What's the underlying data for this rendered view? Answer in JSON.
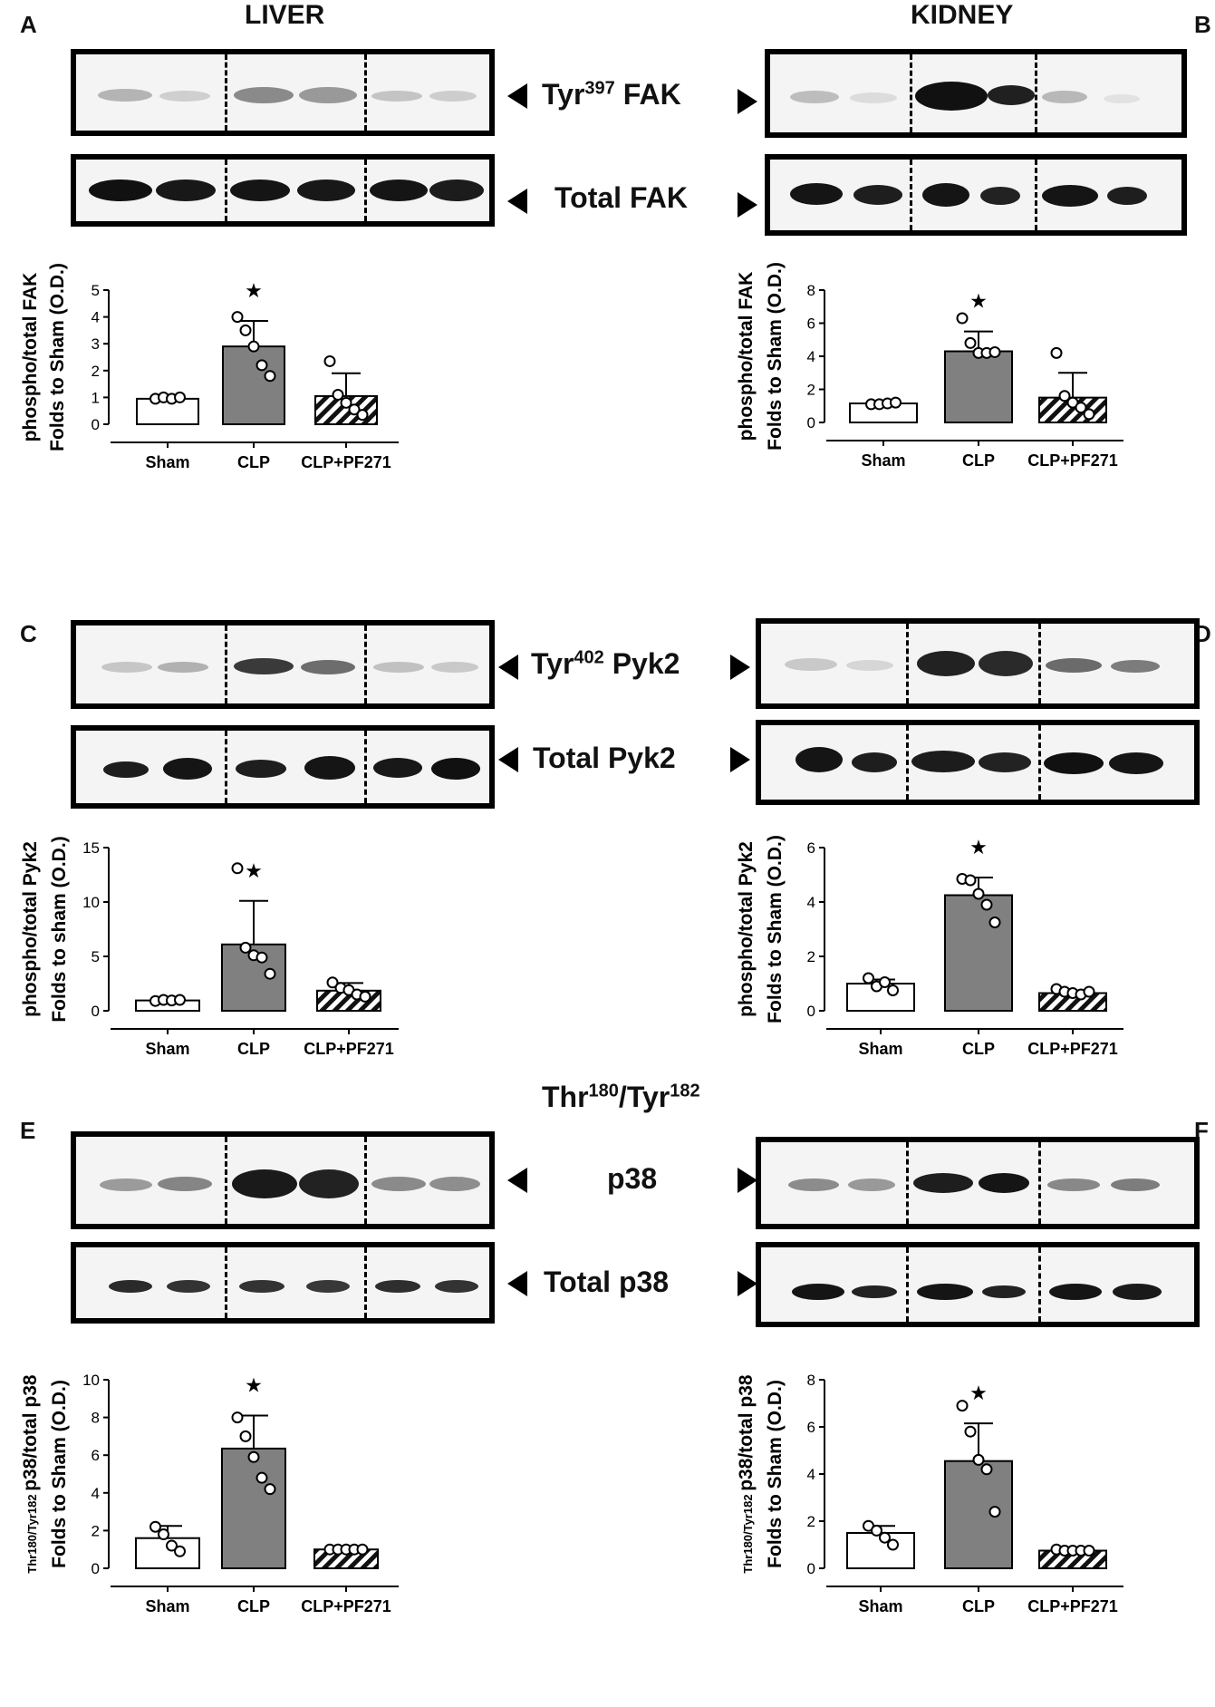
{
  "headers": {
    "liver": "LIVER",
    "kidney": "KIDNEY"
  },
  "panel_letters": [
    "A",
    "B",
    "C",
    "D",
    "E",
    "F"
  ],
  "blot_labels": {
    "fak_phospho_main": "Tyr",
    "fak_phospho_sup": "397",
    "fak_phospho_tail": " FAK",
    "fak_total": "Total FAK",
    "pyk2_phospho_main": "Tyr",
    "pyk2_phospho_sup": "402",
    "pyk2_phospho_tail": " Pyk2",
    "pyk2_total": "Total Pyk2",
    "p38_phospho_a": "Thr",
    "p38_phospho_a_sup": "180",
    "p38_phospho_b": "/Tyr",
    "p38_phospho_b_sup": "182",
    "p38_phospho_line2": "p38",
    "p38_total": "Total p38"
  },
  "colors": {
    "sham": "#ffffff",
    "clp": "#808080",
    "pf": "hatched",
    "star": "#000000"
  },
  "chart_data": [
    {
      "panel": "A",
      "type": "bar",
      "categories": [
        "Sham",
        "CLP",
        "CLP+PF271"
      ],
      "ylabel_line1": "phospho/total FAK",
      "ylabel_line2": "Folds to Sham (O.D.)",
      "ylim": [
        0,
        5
      ],
      "yticks": [
        "0",
        "1",
        "2",
        "3",
        "4",
        "5"
      ],
      "values": [
        0.95,
        2.9,
        1.05
      ],
      "errors": [
        0.05,
        0.95,
        0.85
      ],
      "points": [
        [
          0.95,
          1.0,
          0.95,
          1.0
        ],
        [
          4.0,
          3.5,
          2.9,
          2.2,
          1.8
        ],
        [
          2.35,
          1.1,
          0.8,
          0.55,
          0.35
        ]
      ],
      "significance": [
        "",
        "★",
        ""
      ]
    },
    {
      "panel": "B",
      "type": "bar",
      "categories": [
        "Sham",
        "CLP",
        "CLP+PF271"
      ],
      "ylabel_line1": "phospho/total FAK",
      "ylabel_line2": "Folds to Sham (O.D.)",
      "ylim": [
        0,
        8
      ],
      "yticks": [
        "0",
        "2",
        "4",
        "6",
        "8"
      ],
      "values": [
        1.15,
        4.3,
        1.5
      ],
      "errors": [
        0.1,
        1.2,
        1.5
      ],
      "points": [
        [
          1.1,
          1.1,
          1.15,
          1.2
        ],
        [
          6.3,
          4.8,
          4.2,
          4.2,
          4.25
        ],
        [
          4.2,
          1.6,
          1.2,
          0.9,
          0.5
        ]
      ],
      "significance": [
        "",
        "★",
        ""
      ]
    },
    {
      "panel": "C",
      "type": "bar",
      "categories": [
        "Sham",
        "CLP",
        "CLP+PF271"
      ],
      "ylabel_line1": "phospho/total Pyk2",
      "ylabel_line2": "Folds to sham (O.D.)",
      "ylim": [
        0,
        15
      ],
      "yticks": [
        "0",
        "5",
        "10",
        "15"
      ],
      "values": [
        0.95,
        6.1,
        1.85
      ],
      "errors": [
        0.05,
        4.0,
        0.7
      ],
      "points": [
        [
          0.9,
          1.0,
          0.95,
          1.0
        ],
        [
          13.1,
          5.8,
          5.1,
          4.9,
          3.4
        ],
        [
          2.6,
          2.1,
          1.9,
          1.5,
          1.3
        ]
      ],
      "significance": [
        "",
        "★",
        ""
      ]
    },
    {
      "panel": "D",
      "type": "bar",
      "categories": [
        "Sham",
        "CLP",
        "CLP+PF271"
      ],
      "ylabel_line1": "phospho/total Pyk2",
      "ylabel_line2": "Folds to Sham (O.D.)",
      "ylim": [
        0,
        6
      ],
      "yticks": [
        "0",
        "2",
        "4",
        "6"
      ],
      "values": [
        1.0,
        4.25,
        0.65
      ],
      "errors": [
        0.15,
        0.65,
        0.1
      ],
      "points": [
        [
          1.2,
          0.9,
          1.05,
          0.75
        ],
        [
          4.85,
          4.8,
          4.3,
          3.9,
          3.25
        ],
        [
          0.8,
          0.7,
          0.65,
          0.6,
          0.7
        ]
      ],
      "significance": [
        "",
        "★",
        ""
      ]
    },
    {
      "panel": "E",
      "type": "bar",
      "categories": [
        "Sham",
        "CLP",
        "CLP+PF271"
      ],
      "ylabel_small": "Thr180/Tyr182",
      "ylabel_line1": "p38/total p38",
      "ylabel_line2": "Folds to Sham (O.D.)",
      "ylim": [
        0,
        10
      ],
      "yticks": [
        "0",
        "2",
        "4",
        "6",
        "8",
        "10"
      ],
      "values": [
        1.6,
        6.35,
        1.0
      ],
      "errors": [
        0.65,
        1.75,
        0.05
      ],
      "points": [
        [
          2.2,
          1.8,
          1.2,
          0.9
        ],
        [
          8.0,
          7.0,
          5.9,
          4.8,
          4.2
        ],
        [
          1.0,
          1.0,
          1.0,
          1.0,
          1.0
        ]
      ],
      "significance": [
        "",
        "★",
        ""
      ]
    },
    {
      "panel": "F",
      "type": "bar",
      "categories": [
        "Sham",
        "CLP",
        "CLP+PF271"
      ],
      "ylabel_small": "Thr180/Tyr182",
      "ylabel_line1": "p38/total p38",
      "ylabel_line2": "Folds to Sham (O.D.)",
      "ylim": [
        0,
        8
      ],
      "yticks": [
        "0",
        "2",
        "4",
        "6",
        "8"
      ],
      "values": [
        1.5,
        4.55,
        0.75
      ],
      "errors": [
        0.3,
        1.6,
        0.05
      ],
      "points": [
        [
          1.8,
          1.6,
          1.3,
          1.0
        ],
        [
          6.9,
          5.8,
          4.6,
          4.2,
          2.4
        ],
        [
          0.8,
          0.75,
          0.75,
          0.75,
          0.75
        ]
      ],
      "significance": [
        "",
        "★",
        ""
      ]
    }
  ]
}
